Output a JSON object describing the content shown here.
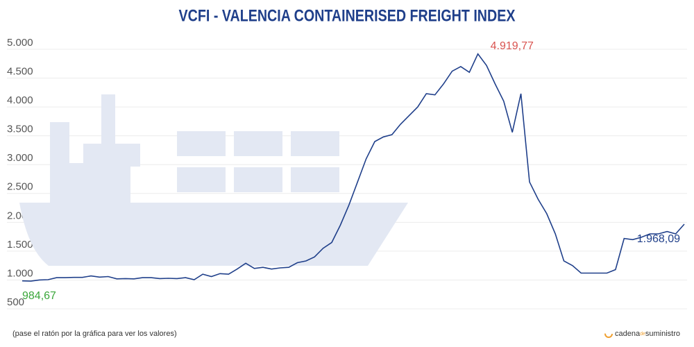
{
  "chart_data": {
    "type": "line",
    "title": "VCFI - VALENCIA CONTAINERISED FREIGHT INDEX",
    "note": "(pase el ratón por la gráfica para ver los valores)",
    "logo": [
      "cadena",
      "de",
      "suministro"
    ],
    "series": [
      {
        "name": "VCFI",
        "color": "#1f3f8a",
        "values": [
          984.67,
          980,
          1000,
          1005,
          1040,
          1040,
          1045,
          1045,
          1070,
          1050,
          1060,
          1020,
          1025,
          1020,
          1040,
          1040,
          1025,
          1030,
          1025,
          1040,
          1005,
          1100,
          1060,
          1110,
          1100,
          1190,
          1290,
          1200,
          1220,
          1190,
          1210,
          1220,
          1300,
          1330,
          1400,
          1550,
          1650,
          1950,
          2300,
          2700,
          3100,
          3400,
          3480,
          3520,
          3700,
          3850,
          4000,
          4230,
          4210,
          4400,
          4620,
          4700,
          4600,
          4919.77,
          4720,
          4400,
          4100,
          3560,
          4230,
          2700,
          2400,
          2150,
          1800,
          1330,
          1250,
          1120,
          1120,
          1120,
          1120,
          1180,
          1720,
          1700,
          1740,
          1800,
          1800,
          1840,
          1800,
          1968.09
        ],
        "value_labels": [
          "984,67",
          null,
          null,
          null,
          null,
          null,
          null,
          null,
          null,
          null,
          null,
          null,
          null,
          null,
          null,
          null,
          null,
          null,
          null,
          null,
          null,
          null,
          null,
          null,
          null,
          null,
          null,
          null,
          null,
          null,
          null,
          null,
          null,
          null,
          null,
          null,
          null,
          null,
          null,
          null,
          null,
          null,
          null,
          null,
          null,
          null,
          null,
          null,
          null,
          null,
          null,
          null,
          null,
          "4.919,77",
          null,
          null,
          null,
          null,
          null,
          null,
          null,
          null,
          null,
          null,
          null,
          null,
          null,
          null,
          null,
          null,
          null,
          null,
          null,
          null,
          null,
          null,
          null,
          "1.968,09"
        ],
        "value_label_colors": [
          "#3aa63a",
          null,
          null,
          null,
          null,
          null,
          null,
          null,
          null,
          null,
          null,
          null,
          null,
          null,
          null,
          null,
          null,
          null,
          null,
          null,
          null,
          null,
          null,
          null,
          null,
          null,
          null,
          null,
          null,
          null,
          null,
          null,
          null,
          null,
          null,
          null,
          null,
          null,
          null,
          null,
          null,
          null,
          null,
          null,
          null,
          null,
          null,
          null,
          null,
          null,
          null,
          null,
          null,
          "#d9534f",
          null,
          null,
          null,
          null,
          null,
          null,
          null,
          null,
          null,
          null,
          null,
          null,
          null,
          null,
          null,
          null,
          null,
          null,
          null,
          null,
          null,
          null,
          null,
          "#1f3f8a"
        ]
      }
    ],
    "ylim": [
      500,
      5000
    ],
    "yticks": [
      {
        "value": 5000,
        "label": "5.000"
      },
      {
        "value": 4500,
        "label": "4.500"
      },
      {
        "value": 4000,
        "label": "4.000"
      },
      {
        "value": 3500,
        "label": "3.500"
      },
      {
        "value": 3000,
        "label": "3.000"
      },
      {
        "value": 2500,
        "label": "2.500"
      },
      {
        "value": 2000,
        "label": "2.000"
      },
      {
        "value": 1500,
        "label": "1.500"
      },
      {
        "value": 1000,
        "label": "1.000"
      },
      500
    ],
    "grid": true
  }
}
